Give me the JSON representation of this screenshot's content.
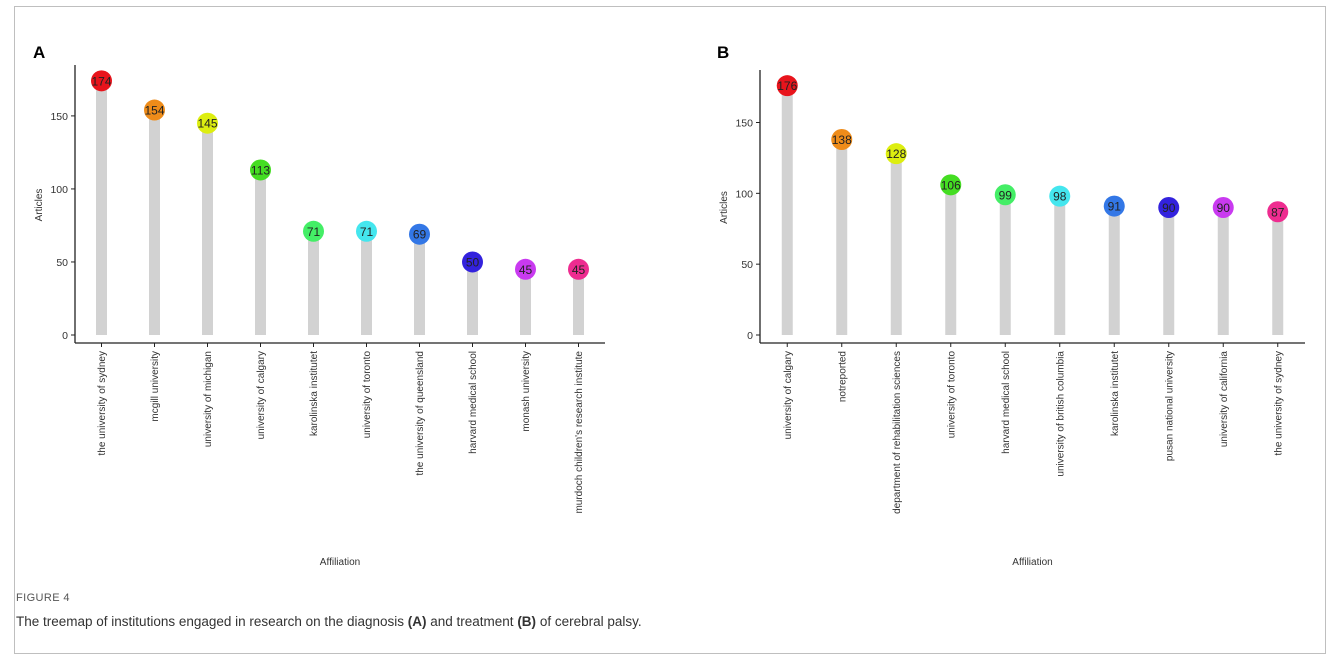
{
  "figure": {
    "label": "FIGURE 4",
    "caption_pre": "The treemap of institutions engaged in research on the diagnosis ",
    "caption_a": "(A)",
    "caption_mid": " and treatment ",
    "caption_b": "(B)",
    "caption_post": " of cerebral palsy."
  },
  "chart_data": [
    {
      "panel": "A",
      "type": "bar",
      "xlabel": "Affiliation",
      "ylabel": "Articles",
      "ylim": [
        0,
        178
      ],
      "yticks": [
        0,
        50,
        100,
        150
      ],
      "categories": [
        "the university of sydney",
        "mcgill university",
        "university of michigan",
        "university of calgary",
        "karolinska institutet",
        "university of toronto",
        "the university of queensland",
        "harvard medical school",
        "monash university",
        "murdoch children's research institute"
      ],
      "values": [
        174,
        154,
        145,
        113,
        71,
        71,
        69,
        50,
        45,
        45
      ],
      "point_colors": [
        "#e8141c",
        "#ee8c1a",
        "#ddee10",
        "#44dd22",
        "#44ee66",
        "#44e6ee",
        "#3377e6",
        "#3322dd",
        "#c93af0",
        "#ee2c90"
      ]
    },
    {
      "panel": "B",
      "type": "bar",
      "xlabel": "Affiliation",
      "ylabel": "Articles",
      "ylim": [
        0,
        180
      ],
      "yticks": [
        0,
        50,
        100,
        150
      ],
      "categories": [
        "university of calgary",
        "notreported",
        "department of rehabilitation sciences",
        "university of toronto",
        "harvard medical school",
        "university of british columbia",
        "karolinska institutet",
        "pusan national university",
        "university of california",
        "the university of sydney"
      ],
      "values": [
        176,
        138,
        128,
        106,
        99,
        98,
        91,
        90,
        90,
        87
      ],
      "point_colors": [
        "#e8141c",
        "#ee8c1a",
        "#ddee10",
        "#44dd22",
        "#44ee66",
        "#44e6ee",
        "#3377e6",
        "#3322dd",
        "#c93af0",
        "#ee2c90"
      ]
    }
  ]
}
